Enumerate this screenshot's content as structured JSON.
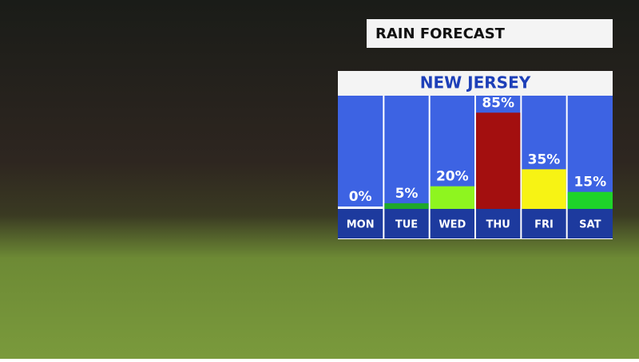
{
  "chart_data": {
    "type": "bar",
    "title": "RAIN FORECAST",
    "subtitle": "NEW JERSEY",
    "categories": [
      "MON",
      "TUE",
      "WED",
      "THU",
      "FRI",
      "SAT"
    ],
    "values": [
      0,
      5,
      20,
      85,
      35,
      15
    ],
    "value_labels": [
      "0%",
      "5%",
      "20%",
      "85%",
      "35%",
      "15%"
    ],
    "colors": [
      "#ffffff",
      "#1fa82a",
      "#8ef51f",
      "#a30f0f",
      "#f7f314",
      "#1ed42a"
    ],
    "ylim": [
      0,
      100
    ]
  }
}
